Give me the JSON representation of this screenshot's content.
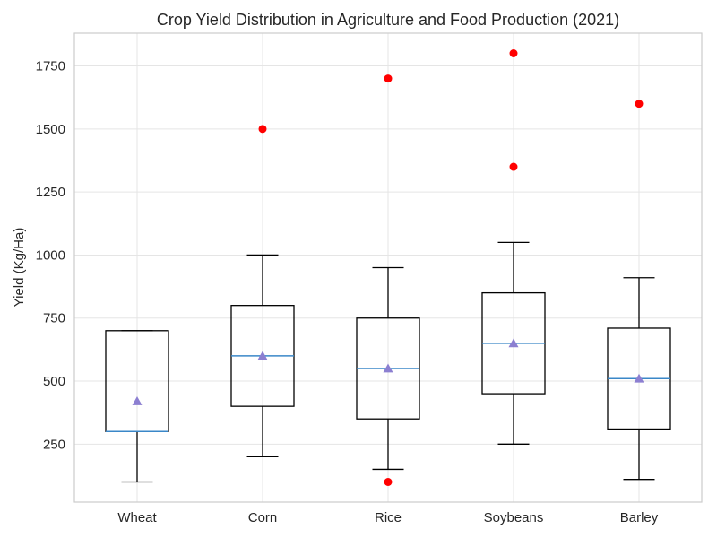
{
  "chart_data": {
    "type": "box",
    "title": "Crop Yield Distribution in Agriculture and Food Production (2021)",
    "xlabel": "",
    "ylabel": "Yield (Kg/Ha)",
    "ylim": [
      20,
      1880
    ],
    "yticks": [
      250,
      500,
      750,
      1000,
      1250,
      1500,
      1750
    ],
    "grid": true,
    "categories": [
      "Wheat",
      "Corn",
      "Rice",
      "Soybeans",
      "Barley"
    ],
    "boxes": [
      {
        "category": "Wheat",
        "whisker_low": 100,
        "q1": 300,
        "median": 300,
        "q3": 700,
        "whisker_high": 700,
        "mean": 420,
        "outliers": []
      },
      {
        "category": "Corn",
        "whisker_low": 200,
        "q1": 400,
        "median": 600,
        "q3": 800,
        "whisker_high": 1000,
        "mean": 600,
        "outliers": [
          1500
        ]
      },
      {
        "category": "Rice",
        "whisker_low": 150,
        "q1": 350,
        "median": 550,
        "q3": 750,
        "whisker_high": 950,
        "mean": 550,
        "outliers": [
          100,
          1700
        ]
      },
      {
        "category": "Soybeans",
        "whisker_low": 250,
        "q1": 450,
        "median": 650,
        "q3": 850,
        "whisker_high": 1050,
        "mean": 650,
        "outliers": [
          1350,
          1800
        ]
      },
      {
        "category": "Barley",
        "whisker_low": 110,
        "q1": 310,
        "median": 510,
        "q3": 710,
        "whisker_high": 910,
        "mean": 510,
        "outliers": [
          1600
        ]
      }
    ],
    "colors": {
      "box": "#000000",
      "median": "#3a87c8",
      "mean": "#8c7fd1",
      "outlier": "#ff0000"
    }
  }
}
